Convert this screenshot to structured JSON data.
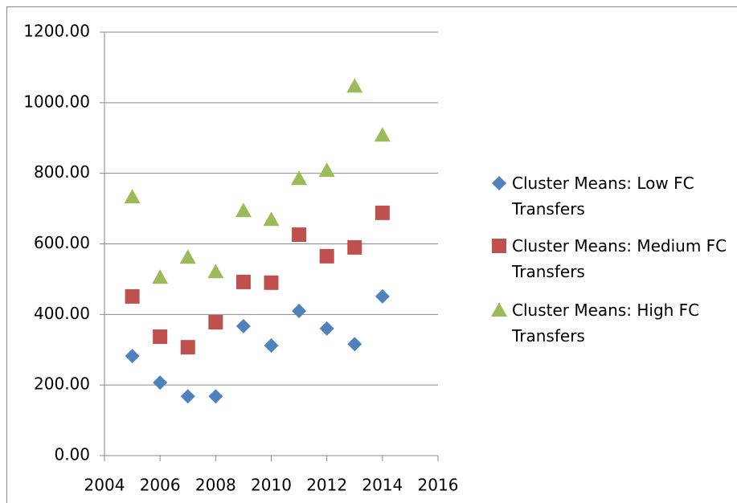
{
  "chart_data": {
    "type": "scatter",
    "series": [
      {
        "name": "Cluster Means: Low FC Transfers",
        "color": "#4f81bd",
        "marker": "diamond",
        "x": [
          2005,
          2006,
          2007,
          2008,
          2009,
          2010,
          2011,
          2012,
          2013,
          2014
        ],
        "values": [
          282,
          207,
          168,
          168,
          367,
          312,
          410,
          360,
          316,
          451
        ]
      },
      {
        "name": "Cluster Means: Medium FC Transfers",
        "color": "#c0504d",
        "marker": "square",
        "x": [
          2005,
          2006,
          2007,
          2008,
          2009,
          2010,
          2011,
          2012,
          2013,
          2014
        ],
        "values": [
          451,
          337,
          307,
          378,
          492,
          490,
          626,
          565,
          590,
          688
        ]
      },
      {
        "name": "Cluster Means: High FC Transfers",
        "color": "#9bbb59",
        "marker": "triangle",
        "x": [
          2005,
          2006,
          2007,
          2008,
          2009,
          2010,
          2011,
          2012,
          2013,
          2014
        ],
        "values": [
          733,
          505,
          562,
          521,
          694,
          669,
          785,
          808,
          1047,
          908
        ]
      }
    ],
    "xlim": [
      2004,
      2016
    ],
    "xticks": [
      2004,
      2006,
      2008,
      2010,
      2012,
      2014,
      2016
    ],
    "ylim": [
      0,
      1200
    ],
    "yticks": [
      {
        "value": 0,
        "label": "0.00"
      },
      {
        "value": 200,
        "label": "200.00"
      },
      {
        "value": 400,
        "label": "400.00"
      },
      {
        "value": 600,
        "label": "600.00"
      },
      {
        "value": 800,
        "label": "800.00"
      },
      {
        "value": 1000,
        "label": "1000.00"
      },
      {
        "value": 1200,
        "label": "1200.00"
      }
    ],
    "grid": true,
    "legend": "right"
  }
}
